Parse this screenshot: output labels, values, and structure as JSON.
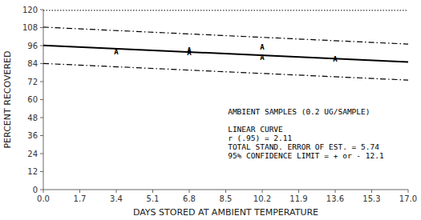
{
  "chart_data": {
    "type": "line",
    "xlabel": "DAYS STORED AT AMBIENT TEMPERATURE",
    "ylabel": "PERCENT RECOVERED",
    "xlim": [
      0.0,
      17.0
    ],
    "ylim": [
      0,
      120
    ],
    "xticks": [
      {
        "value": 0.0,
        "label": "0.0"
      },
      1.7,
      3.4,
      5.1,
      6.8,
      8.5,
      10.2,
      11.9,
      13.6,
      15.3,
      {
        "value": 17.0,
        "label": "17.0"
      }
    ],
    "yticks": [
      0,
      12,
      24,
      36,
      48,
      60,
      72,
      84,
      96,
      108,
      120
    ],
    "series": [
      {
        "type": "line",
        "x": [
          0.0,
          17.0
        ],
        "values": [
          119.5,
          119.5
        ],
        "color": "#000000",
        "line_style": "dotted"
      },
      {
        "type": "line",
        "x": [
          0.0,
          17.0
        ],
        "values": [
          108.3,
          97.0
        ],
        "color": "#000000",
        "line_style": "dashdot"
      },
      {
        "type": "line",
        "x": [
          0.0,
          17.0
        ],
        "values": [
          84.1,
          73.0
        ],
        "color": "#000000",
        "line_style": "dashdot"
      },
      {
        "type": "line",
        "x": [
          0.0,
          17.0
        ],
        "values": [
          96.2,
          85.0
        ],
        "color": "#000000",
        "line_style": "solid"
      },
      {
        "type": "scatter",
        "x": [
          3.4,
          6.8,
          6.8,
          10.2,
          10.2,
          13.6
        ],
        "values": [
          91.5,
          93.0,
          91.0,
          95.0,
          88.0,
          87.0
        ],
        "color": "black",
        "marker": "A"
      }
    ],
    "annotations": [
      {
        "text": "AMBIENT SAMPLES (0.2 UG/SAMPLE)\n\nLINEAR CURVE\nr (.95) = 2.11\nTOTAL STAND. ERROR OF EST. = 5.74\n95% CONFIDENCE LIMIT = + or - 12.1",
        "x": 8.6,
        "y": 55
      }
    ]
  }
}
